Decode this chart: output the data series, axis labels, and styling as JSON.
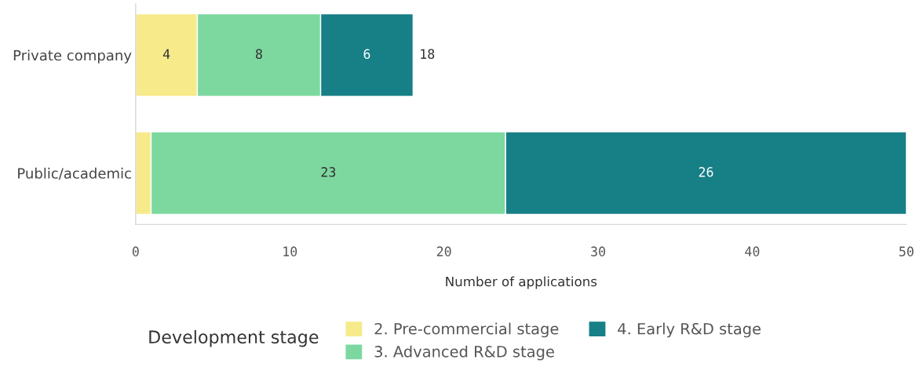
{
  "chart_data": {
    "type": "bar",
    "orientation": "horizontal",
    "stacked": true,
    "categories": [
      "Private company",
      "Public/academic"
    ],
    "series": [
      {
        "name": "2. Pre-commercial stage",
        "color": "#f7ea8a",
        "values": [
          4,
          1
        ],
        "value_labels": [
          "4",
          null
        ]
      },
      {
        "name": "3. Advanced R&D stage",
        "color": "#7dd8a0",
        "values": [
          8,
          23
        ],
        "value_labels": [
          "8",
          "23"
        ]
      },
      {
        "name": "4. Early R&D stage",
        "color": "#177f86",
        "values": [
          6,
          26
        ],
        "value_labels": [
          "6",
          "26"
        ]
      }
    ],
    "totals": [
      "18",
      null
    ],
    "xlabel": "Number of applications",
    "legend_title": "Development stage",
    "legend": "bottom",
    "xlim": [
      0,
      50
    ],
    "xticks": [
      0,
      10,
      20,
      30,
      40,
      50
    ],
    "grid": false
  }
}
